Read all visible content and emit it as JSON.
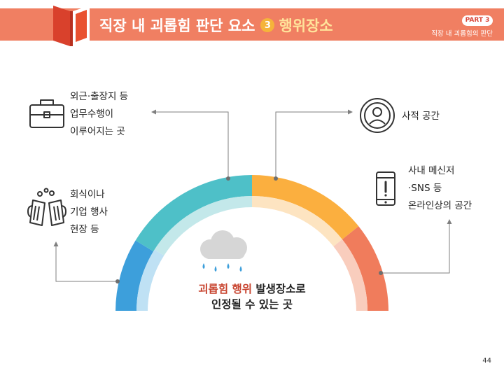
{
  "header": {
    "title_main": "직장 내 괴롭힘 판단 요소",
    "title_number": "3",
    "title_sub": "행위장소",
    "part_badge": "PART 3",
    "part_subtitle": "직장 내 괴롭힘의 판단"
  },
  "labels": {
    "business_trip": [
      "외근·출장지 등",
      "업무수행이",
      "이루어지는 곳"
    ],
    "private_space": [
      "사적 공간"
    ],
    "dinner_event": [
      "회식이나",
      "기업 행사",
      "현장 등"
    ],
    "online": [
      "사내 메신저",
      "·SNS 등",
      "온라인상의 공간"
    ]
  },
  "center": {
    "line1_accent": "괴롭힘 행위",
    "line1_rest": " 발생장소로",
    "line2": "인정될 수 있는 곳"
  },
  "page_number": "44",
  "colors": {
    "header": "#f07f62",
    "segment_blue": "#3d9fdb",
    "segment_teal": "#4ec0c8",
    "segment_orange": "#fbaf3f",
    "segment_red": "#f07c5c",
    "accent_text": "#c8442f"
  },
  "icons": {
    "business_trip": "briefcase-icon",
    "private_space": "person-circle-icon",
    "dinner_event": "beer-mugs-icon",
    "online": "smartphone-alert-icon",
    "center": "rain-cloud-icon"
  }
}
